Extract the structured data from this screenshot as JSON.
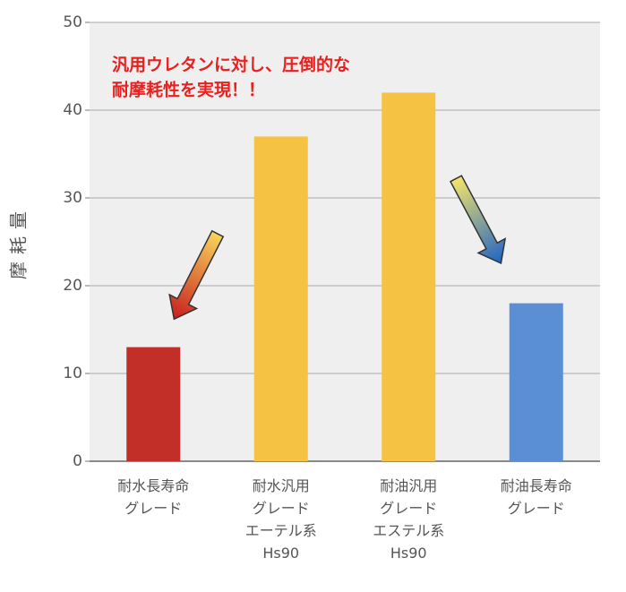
{
  "chart_data": {
    "type": "bar",
    "y_label": "摩耗量",
    "annotation": [
      "汎用ウレタンに対し、圧倒的な",
      "耐摩耗性を実現！！"
    ],
    "categories": [
      "耐水長寿命\nグレード",
      "耐水汎用\nグレード\nエーテル系\nHs90",
      "耐油汎用\nグレード\nエステル系\nHs90",
      "耐油長寿命\nグレード"
    ],
    "values": [
      13,
      37,
      42,
      18
    ],
    "colors": [
      "#c22f28",
      "#f6c244",
      "#f6c244",
      "#5a8fd6"
    ],
    "ylim": [
      0,
      50
    ],
    "yticks": [
      0,
      10,
      20,
      30,
      40,
      50
    ],
    "grid": true
  }
}
